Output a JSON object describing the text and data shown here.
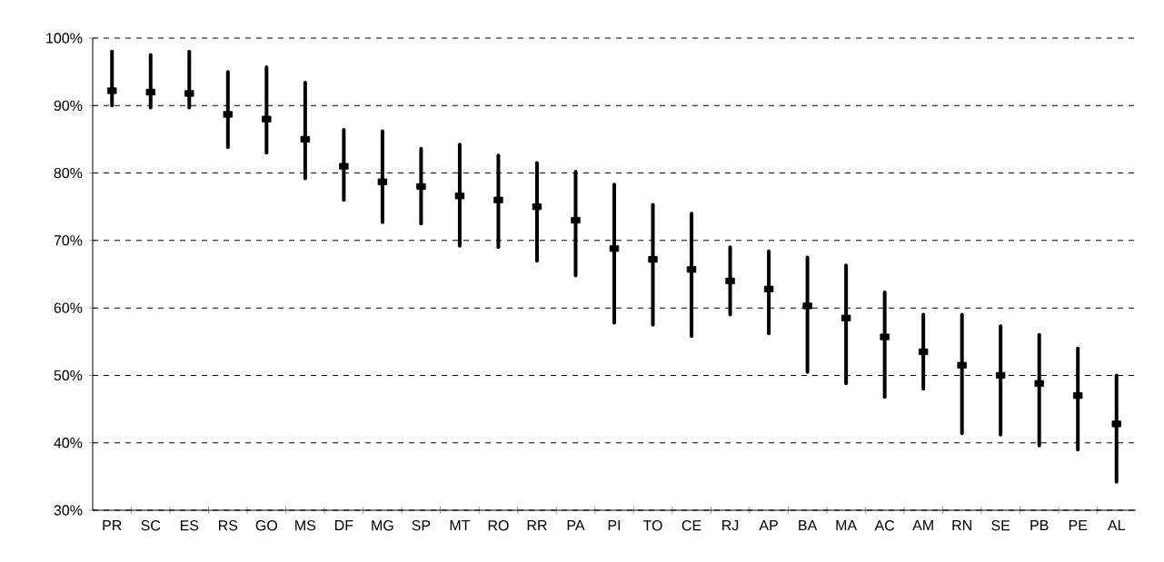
{
  "chart_data": {
    "type": "scatter",
    "categories": [
      "PR",
      "SC",
      "ES",
      "RS",
      "GO",
      "MS",
      "DF",
      "MG",
      "SP",
      "MT",
      "RO",
      "RR",
      "PA",
      "PI",
      "TO",
      "CE",
      "RJ",
      "AP",
      "BA",
      "MA",
      "AC",
      "AM",
      "RN",
      "SE",
      "PB",
      "PE",
      "AL"
    ],
    "values": [
      92.2,
      92,
      91.8,
      88.7,
      88,
      85,
      81,
      78.7,
      78,
      76.6,
      76,
      75,
      73,
      68.8,
      67.2,
      65.7,
      64,
      62.8,
      60.3,
      58.5,
      55.7,
      53.5,
      51.5,
      50,
      48.8,
      47,
      42.8
    ],
    "errors": [
      [
        90,
        98
      ],
      [
        89.7,
        97.5
      ],
      [
        89.7,
        98
      ],
      [
        83.8,
        95
      ],
      [
        83,
        95.7
      ],
      [
        79.2,
        93.4
      ],
      [
        76,
        86.4
      ],
      [
        72.7,
        86.2
      ],
      [
        72.5,
        83.6
      ],
      [
        69.2,
        84.2
      ],
      [
        69,
        82.6
      ],
      [
        67,
        81.5
      ],
      [
        64.8,
        80.2
      ],
      [
        57.8,
        78.3
      ],
      [
        57.5,
        75.3
      ],
      [
        55.8,
        74
      ],
      [
        59,
        69
      ],
      [
        56.2,
        68.4
      ],
      [
        50.5,
        67.5
      ],
      [
        48.8,
        66.3
      ],
      [
        46.8,
        62.3
      ],
      [
        48,
        59
      ],
      [
        41.4,
        59
      ],
      [
        41.2,
        57.3
      ],
      [
        39.6,
        56
      ],
      [
        39,
        54
      ],
      [
        34.2,
        50
      ]
    ],
    "color": "#000000",
    "ylim": [
      30,
      100
    ],
    "yticks": [
      {
        "value": 30,
        "label": "30%"
      },
      {
        "value": 40,
        "label": "40%"
      },
      {
        "value": 50,
        "label": "50%"
      },
      {
        "value": 60,
        "label": "60%"
      },
      {
        "value": 70,
        "label": "70%"
      },
      {
        "value": 80,
        "label": "80%"
      },
      {
        "value": 90,
        "label": "90%"
      },
      {
        "value": 100,
        "label": "100%"
      }
    ],
    "grid": "y",
    "line_style": "solid",
    "marker": "square"
  }
}
